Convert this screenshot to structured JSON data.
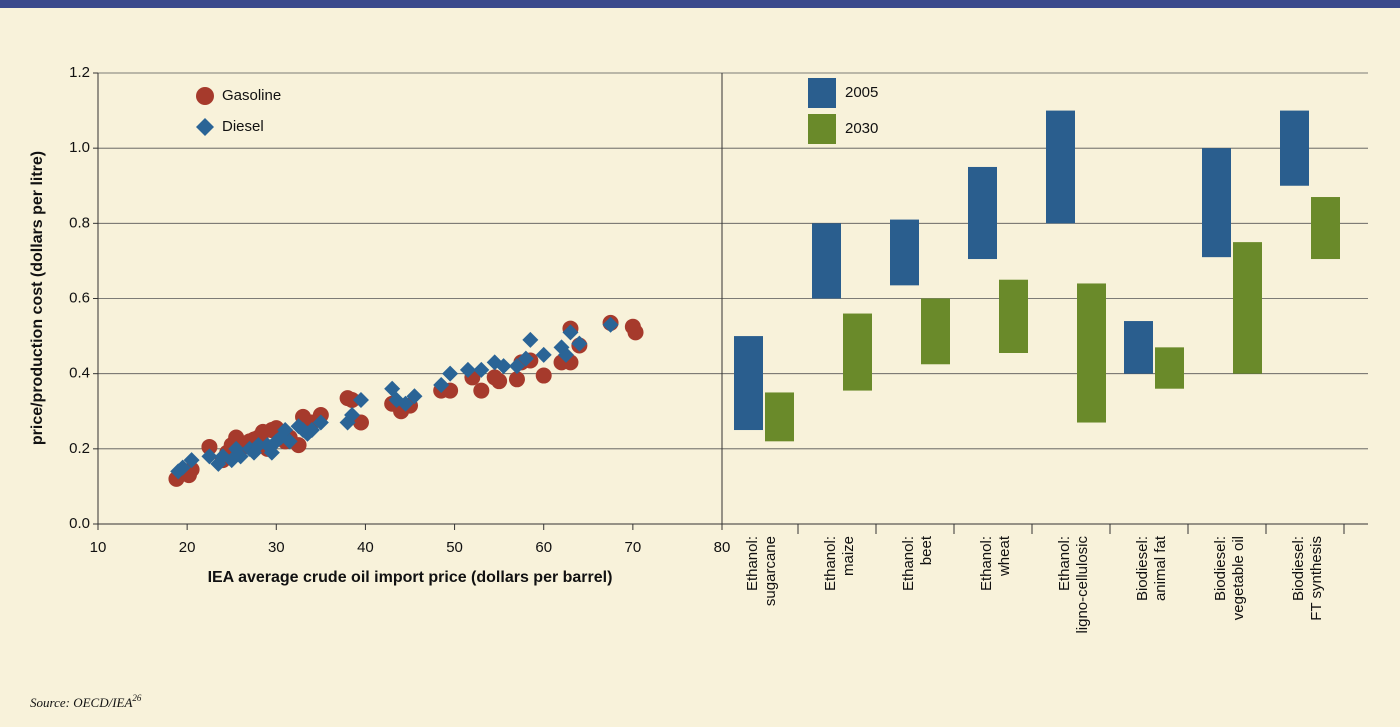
{
  "chart_data": [
    {
      "type": "scatter",
      "xlabel": "IEA average crude oil import price (dollars per barrel)",
      "ylabel": "price/production cost (dollars per litre)",
      "xlim": [
        10,
        80
      ],
      "xticks": [
        10,
        20,
        30,
        40,
        50,
        60,
        70,
        80
      ],
      "ylim": [
        0,
        1.2
      ],
      "yticks": [
        {
          "value": 0,
          "label": "0.0"
        },
        0.2,
        0.4,
        0.6,
        0.8,
        {
          "value": 1,
          "label": "1.0"
        },
        1.2
      ],
      "grid": true,
      "series": [
        {
          "name": "Gasoline",
          "color": "#a63a2c",
          "marker": "circle",
          "x": [
            18.8,
            20.2,
            20.5,
            22.5,
            24,
            24.5,
            25,
            25.5,
            26,
            26.5,
            27,
            27.5,
            28,
            28.5,
            29,
            29.5,
            30,
            30.5,
            31,
            31.5,
            32.5,
            33,
            34,
            35,
            38,
            38.5,
            39.5,
            43,
            44,
            45,
            48.5,
            49.5,
            52,
            53,
            54.5,
            55,
            57,
            57.5,
            58.5,
            60,
            62,
            63,
            63,
            64,
            67.5,
            70,
            70.3
          ],
          "y": [
            0.12,
            0.13,
            0.145,
            0.205,
            0.17,
            0.19,
            0.21,
            0.23,
            0.2,
            0.21,
            0.22,
            0.225,
            0.23,
            0.245,
            0.2,
            0.25,
            0.255,
            0.24,
            0.22,
            0.23,
            0.21,
            0.285,
            0.27,
            0.29,
            0.335,
            0.33,
            0.27,
            0.32,
            0.3,
            0.315,
            0.355,
            0.355,
            0.39,
            0.355,
            0.39,
            0.38,
            0.385,
            0.43,
            0.435,
            0.395,
            0.43,
            0.43,
            0.52,
            0.475,
            0.535,
            0.525,
            0.51
          ]
        },
        {
          "name": "Diesel",
          "color": "#2a6496",
          "marker": "diamond",
          "x": [
            19,
            19.5,
            20.5,
            22.5,
            23.5,
            24,
            25,
            25.5,
            26,
            27,
            27.5,
            28,
            29,
            29.5,
            30,
            30.5,
            31,
            31.5,
            32.5,
            33,
            33.5,
            34,
            35,
            38,
            38.5,
            39.5,
            43,
            43.5,
            44.5,
            45.5,
            48.5,
            49.5,
            51.5,
            53,
            54.5,
            55.5,
            57,
            58,
            58.5,
            60,
            62,
            63,
            62.5,
            64,
            67.5
          ],
          "y": [
            0.14,
            0.15,
            0.17,
            0.18,
            0.16,
            0.18,
            0.17,
            0.2,
            0.18,
            0.2,
            0.19,
            0.21,
            0.21,
            0.19,
            0.22,
            0.23,
            0.25,
            0.22,
            0.26,
            0.25,
            0.24,
            0.25,
            0.27,
            0.27,
            0.29,
            0.33,
            0.36,
            0.33,
            0.32,
            0.34,
            0.37,
            0.4,
            0.41,
            0.41,
            0.43,
            0.42,
            0.42,
            0.44,
            0.49,
            0.45,
            0.47,
            0.51,
            0.45,
            0.48,
            0.53
          ]
        }
      ]
    },
    {
      "type": "range_bar",
      "ylim": [
        0,
        1.2
      ],
      "yticks": [
        0.2,
        0.4,
        0.6,
        0.8,
        1,
        1.2
      ],
      "grid": true,
      "categories": [
        [
          "Ethanol:",
          "sugarcane"
        ],
        [
          "Ethanol:",
          "maize"
        ],
        [
          "Ethanol:",
          "beet"
        ],
        [
          "Ethanol:",
          "wheat"
        ],
        [
          "Ethanol:",
          "ligno-cellulosic"
        ],
        [
          "Biodiesel:",
          "animal fat"
        ],
        [
          "Biodiesel:",
          "vegetable oil"
        ],
        [
          "Biodiesel:",
          "FT synthesis"
        ]
      ],
      "series": [
        {
          "name": "2005",
          "color": "#2a5e8e",
          "low": [
            0.25,
            0.6,
            0.635,
            0.705,
            0.8,
            0.4,
            0.71,
            0.9
          ],
          "high": [
            0.5,
            0.8,
            0.81,
            0.95,
            1.1,
            0.54,
            1,
            1.1
          ]
        },
        {
          "name": "2030",
          "color": "#6a8a2a",
          "low": [
            0.22,
            0.355,
            0.425,
            0.455,
            0.27,
            0.36,
            0.4,
            0.705
          ],
          "high": [
            0.35,
            0.56,
            0.6,
            0.65,
            0.64,
            0.47,
            0.75,
            0.87
          ]
        }
      ]
    }
  ],
  "source": "Source: OECD/IEA",
  "source_note": "26"
}
